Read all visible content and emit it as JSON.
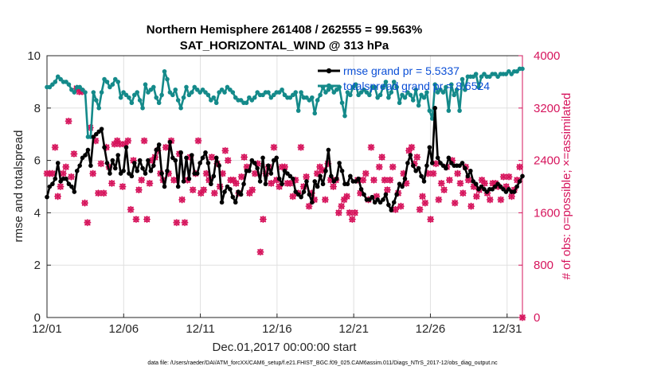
{
  "chart_data": {
    "type": "line",
    "title": "Northern Hemisphere 261408 / 262555 = 99.563%",
    "subtitle": "SAT_HORIZONTAL_WIND @ 313 hPa",
    "xlabel": "Dec.01,2017 00:00:00 start",
    "ylabel": "rmse and totalspread",
    "y2label": "# of obs: o=possible; ×=assimilated",
    "footer": "data file: /Users/raeder/DAI/ATM_forcXX/CAM6_setup/f.e21.FHIST_BGC.f09_025.CAM6assim.011/Diags_NTrS_2017-12/obs_diag_output.nc",
    "x_tick_labels": [
      "12/01",
      "12/06",
      "12/11",
      "12/16",
      "12/21",
      "12/26",
      "12/31"
    ],
    "x_tick_days": [
      0,
      5,
      10,
      15,
      20,
      25,
      30
    ],
    "xlim": [
      0,
      31
    ],
    "ylim": [
      0,
      10
    ],
    "y_ticks": [
      "0",
      "2",
      "4",
      "6",
      "8",
      "10"
    ],
    "y2lim": [
      0,
      4000
    ],
    "y2_ticks": [
      "0",
      "800",
      "1600",
      "2400",
      "3200",
      "4000"
    ],
    "colors": {
      "rmse": "#000000",
      "spread": "#148a8a",
      "obs": "#d6145c",
      "legend_text": "#0b4fd6",
      "grid": "#e0e0e0"
    },
    "legend": [
      {
        "label": "rmse grand pr = 5.5337",
        "color": "#000000"
      },
      {
        "label": "totalspread grand pr = 8.6524",
        "color": "#148a8a"
      }
    ],
    "series": [
      {
        "name": "rmse",
        "axis": "left",
        "values": [
          4.6,
          5.0,
          5.1,
          5.3,
          5.9,
          5.2,
          5.3,
          5.3,
          5.1,
          5.0,
          4.8,
          5.6,
          5.8,
          6.1,
          6.2,
          6.4,
          5.8,
          6.9,
          7.0,
          7.1,
          7.2,
          6.5,
          5.9,
          5.5,
          6.0,
          5.7,
          6.2,
          5.5,
          5.6,
          6.5,
          5.5,
          5.4,
          5.9,
          5.6,
          6.0,
          5.7,
          5.5,
          6.0,
          5.6,
          5.8,
          6.4,
          6.6,
          5.5,
          5.0,
          5.6,
          6.7,
          6.1,
          6.0,
          5.0,
          6.3,
          5.2,
          6.1,
          5.3,
          6.2,
          5.5,
          5.5,
          5.9,
          6.1,
          6.3,
          5.9,
          5.1,
          5.4,
          6.1,
          5.8,
          4.4,
          4.8,
          5.0,
          4.9,
          4.6,
          4.4,
          4.8,
          4.7,
          5.1,
          5.6,
          5.6,
          6.0,
          5.9,
          5.7,
          5.2,
          6.1,
          5.1,
          5.8,
          5.5,
          6.0,
          6.1,
          5.3,
          5.1,
          5.6,
          5.5,
          5.4,
          5.3,
          4.8,
          4.7,
          4.6,
          4.8,
          5.2,
          4.7,
          4.4,
          5.2,
          5.0,
          5.4,
          5.1,
          5.6,
          6.4,
          5.4,
          5.2,
          5.3,
          5.9,
          5.6,
          5.1,
          5.1,
          5.4,
          5.2,
          5.2,
          5.3,
          4.9,
          4.7,
          4.5,
          4.5,
          4.6,
          4.4,
          4.5,
          4.4,
          4.5,
          4.7,
          4.3,
          4.1,
          4.4,
          4.7,
          5.1,
          5.0,
          5.3,
          5.9,
          6.2,
          5.8,
          5.6,
          5.7,
          5.4,
          5.2,
          5.8,
          6.5,
          5.9,
          8.0,
          6.1,
          5.9,
          5.8,
          5.7,
          6.1,
          5.9,
          5.8,
          5.8,
          5.8,
          5.9,
          5.7,
          5.4,
          5.6,
          5.2,
          5.1,
          4.9,
          5.0,
          4.9,
          4.8,
          4.9,
          4.9,
          5.0,
          5.1,
          5.0,
          4.9,
          4.8,
          4.9,
          4.8,
          4.8,
          5.0,
          5.2,
          5.4
        ]
      },
      {
        "name": "totalspread",
        "axis": "left",
        "values": [
          8.8,
          8.8,
          8.9,
          9.0,
          9.2,
          9.1,
          9.0,
          9.0,
          8.9,
          8.7,
          8.6,
          8.8,
          8.8,
          8.7,
          8.6,
          6.9,
          6.9,
          8.6,
          8.3,
          8.0,
          8.6,
          9.1,
          9.0,
          8.8,
          8.9,
          9.1,
          9.0,
          8.4,
          8.6,
          8.5,
          8.4,
          8.2,
          8.5,
          8.6,
          8.3,
          8.0,
          8.9,
          8.6,
          8.7,
          8.8,
          8.4,
          8.2,
          8.5,
          9.4,
          9.1,
          8.6,
          8.5,
          8.7,
          8.3,
          8.0,
          8.4,
          8.8,
          8.5,
          8.6,
          8.8,
          8.7,
          8.6,
          8.7,
          8.6,
          8.5,
          8.3,
          8.4,
          8.2,
          8.6,
          8.7,
          8.6,
          8.8,
          8.7,
          8.6,
          8.4,
          8.3,
          8.3,
          8.2,
          8.2,
          8.4,
          8.3,
          8.4,
          8.6,
          8.5,
          8.5,
          8.6,
          8.6,
          8.4,
          8.5,
          8.6,
          8.6,
          8.7,
          8.5,
          8.4,
          8.4,
          8.5,
          8.6,
          7.9,
          8.6,
          8.4,
          8.4,
          8.3,
          8.4,
          7.8,
          8.3,
          8.5,
          8.8,
          8.6,
          8.7,
          8.8,
          8.6,
          8.7,
          8.8,
          8.2,
          7.7,
          8.6,
          8.5,
          8.8,
          8.9,
          8.5,
          8.6,
          8.7,
          8.6,
          8.5,
          8.8,
          8.8,
          8.4,
          8.5,
          8.8,
          9.0,
          8.4,
          8.6,
          9.0,
          8.8,
          8.2,
          8.5,
          8.4,
          8.6,
          8.5,
          8.3,
          8.7,
          8.1,
          8.5,
          8.4,
          8.6,
          7.9,
          7.6,
          8.9,
          8.6,
          8.7,
          8.6,
          8.8,
          7.9,
          8.9,
          8.5,
          8.7,
          7.9,
          9.1,
          8.7,
          9.2,
          9.2,
          9.2,
          9.3,
          8.8,
          9.2,
          9.3,
          9.2,
          9.2,
          9.3,
          9.3,
          9.2,
          9.3,
          9.3,
          9.3,
          9.4,
          9.3,
          9.4,
          9.4,
          9.5,
          9.5
        ]
      },
      {
        "name": "obs possible",
        "axis": "right",
        "marker": "o",
        "values": [
          2200,
          2200,
          2200,
          2600,
          1850,
          2000,
          2200,
          2300,
          3000,
          2150,
          2500,
          3500,
          3450,
          3450,
          1750,
          1450,
          2900,
          2200,
          2700,
          1900,
          2350,
          1900,
          2600,
          2300,
          2050,
          2650,
          2700,
          2650,
          2000,
          2650,
          2700,
          1650,
          2400,
          1500,
          1950,
          2100,
          2700,
          1500,
          2050,
          2400,
          2450,
          2550,
          2200,
          2100,
          2600,
          2200,
          2700,
          2100,
          1450,
          2500,
          1800,
          1450,
          2100,
          2450,
          1950,
          2200,
          2700,
          1900,
          1950,
          2200,
          2100,
          2450,
          1900,
          2350,
          2000,
          2200,
          2550,
          2400,
          2100,
          2100,
          2050,
          1900,
          2150,
          2450,
          2300,
          1900,
          1950,
          2200,
          2350,
          1000,
          1500,
          2200,
          2300,
          2050,
          2600,
          2100,
          2000,
          2300,
          2300,
          2050,
          2050,
          1850,
          2100,
          1900,
          2600,
          2000,
          2150,
          1700,
          1900,
          1800,
          2200,
          2300,
          2250,
          1800,
          2350,
          2100,
          2000,
          2100,
          1600,
          1700,
          1800,
          1850,
          1600,
          1500,
          1600,
          2100,
          1900,
          2100,
          2200,
          1800,
          2600,
          2100,
          1850,
          2300,
          2450,
          2100,
          1950,
          2100,
          2300,
          1650,
          1900,
          1700,
          2200,
          2050,
          2550,
          2600,
          2350,
          2450,
          1650,
          1850,
          1750,
          2200,
          1500,
          2200,
          2350,
          1800,
          2050,
          1950,
          2300,
          2100,
          2400,
          1750,
          2200,
          2050,
          1900,
          2300,
          2100,
          1700,
          2000,
          1850,
          1950,
          2100,
          2050,
          1900,
          1800,
          2050,
          2050,
          2000,
          1800,
          2150,
          2000,
          2150,
          1850,
          1950,
          2100,
          2300,
          0
        ]
      },
      {
        "name": "obs assimilated",
        "axis": "right",
        "marker": "x",
        "values": [
          2200,
          2200,
          2200,
          2600,
          1850,
          2000,
          2200,
          2300,
          3000,
          2150,
          2500,
          3500,
          3450,
          3450,
          1750,
          1450,
          2900,
          2200,
          2700,
          1900,
          2350,
          1900,
          2600,
          2300,
          2050,
          2650,
          2700,
          2650,
          2000,
          2650,
          2700,
          1650,
          2400,
          1500,
          1950,
          2100,
          2700,
          1500,
          2050,
          2400,
          2450,
          2550,
          2200,
          2100,
          2600,
          2200,
          2700,
          2100,
          1450,
          2500,
          1800,
          1450,
          2100,
          2450,
          1950,
          2200,
          2700,
          1900,
          1950,
          2200,
          2100,
          2450,
          1900,
          2350,
          2000,
          2200,
          2550,
          2400,
          2100,
          2100,
          2050,
          1900,
          2150,
          2450,
          2300,
          1900,
          1950,
          2200,
          2350,
          1000,
          1500,
          2200,
          2300,
          2050,
          2600,
          2100,
          2000,
          2300,
          2300,
          2050,
          2050,
          1850,
          2100,
          1900,
          2600,
          2000,
          2150,
          1700,
          1900,
          1800,
          2200,
          2300,
          2250,
          1800,
          2350,
          2100,
          2000,
          2100,
          1600,
          1700,
          1800,
          1850,
          1600,
          1500,
          1600,
          2100,
          1900,
          2100,
          2200,
          1800,
          2600,
          2100,
          1850,
          2300,
          2450,
          2100,
          1950,
          2100,
          2300,
          1650,
          1900,
          1700,
          2200,
          2050,
          2550,
          2600,
          2350,
          2450,
          1650,
          1850,
          1750,
          2200,
          1500,
          2200,
          2350,
          1800,
          2050,
          1950,
          2300,
          2100,
          2400,
          1750,
          2200,
          2050,
          1900,
          2300,
          2100,
          1700,
          2000,
          1850,
          1950,
          2100,
          2050,
          1900,
          1800,
          2050,
          2050,
          2000,
          1800,
          2150,
          2000,
          2150,
          1850,
          1950,
          2100,
          2300,
          0
        ]
      }
    ]
  }
}
